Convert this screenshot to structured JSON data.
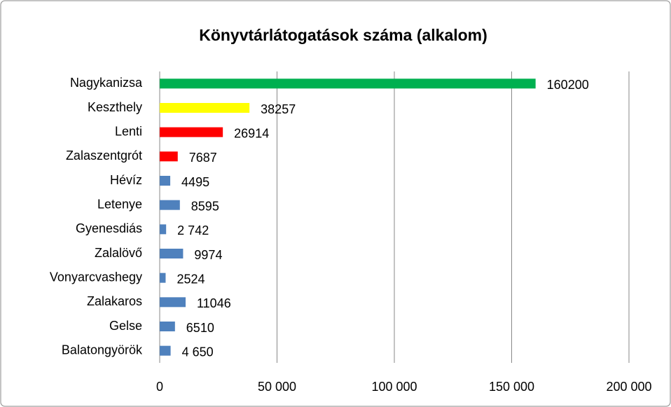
{
  "chart_data": {
    "type": "barh",
    "title": "Könyvtárlátogatások száma (alkalom)",
    "categories": [
      "Nagykanizsa",
      "Keszthely",
      "Lenti",
      "Zalaszentgrót",
      "Hévíz",
      "Letenye",
      "Gyenesdiás",
      "Zalalövő",
      "Vonyarcvashegy",
      "Zalakaros",
      "Gelse",
      "Balatongyörök"
    ],
    "values": [
      160200,
      38257,
      26914,
      7687,
      4495,
      8595,
      2742,
      9974,
      2524,
      11046,
      6510,
      4650
    ],
    "value_labels": [
      "160200",
      "38257",
      "26914",
      "7687",
      "4495",
      "8595",
      "2 742",
      "9974",
      "2524",
      "11046",
      "6510",
      "4 650"
    ],
    "colors": [
      "#00b050",
      "#ffff00",
      "#ff0000",
      "#ff0000",
      "#4f81bd",
      "#4f81bd",
      "#4f81bd",
      "#4f81bd",
      "#4f81bd",
      "#4f81bd",
      "#4f81bd",
      "#4f81bd"
    ],
    "xlim": [
      0,
      200000
    ],
    "xticks": [
      0,
      {
        "value": 50000,
        "label": "50 000"
      },
      {
        "value": 100000,
        "label": "100 000"
      },
      {
        "value": 150000,
        "label": "150 000"
      },
      {
        "value": 200000,
        "label": "200 000"
      }
    ],
    "grid": true
  }
}
